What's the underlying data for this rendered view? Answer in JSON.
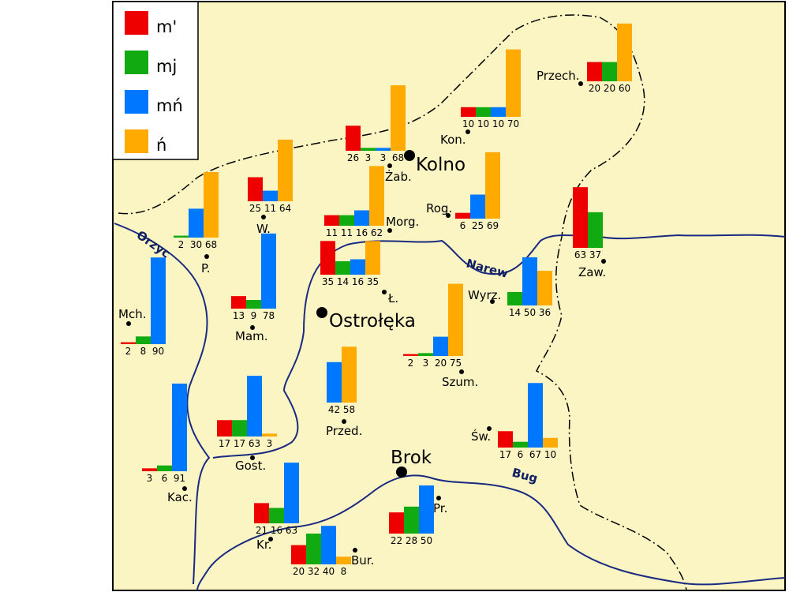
{
  "legend": [
    {
      "label": "m'",
      "color": "#ee0000"
    },
    {
      "label": "mj",
      "color": "#11aa11"
    },
    {
      "label": "mń",
      "color": "#0077ff"
    },
    {
      "label": "ń",
      "color": "#ffaa00"
    }
  ],
  "places": [
    {
      "label": "Przech.",
      "values": [
        20,
        20,
        null,
        60
      ]
    },
    {
      "label": "Kon.",
      "values": [
        10,
        10,
        10,
        70
      ]
    },
    {
      "label": "Żab.",
      "values": [
        26,
        3,
        3,
        68
      ]
    },
    {
      "label": "Rog.",
      "values": [
        6,
        null,
        25,
        69
      ]
    },
    {
      "label": "W.",
      "values": [
        25,
        null,
        11,
        64
      ]
    },
    {
      "label": "P.",
      "values": [
        null,
        2,
        30,
        68
      ]
    },
    {
      "label": "Morg.",
      "values": [
        11,
        11,
        16,
        62
      ]
    },
    {
      "label": "Ł.",
      "values": [
        35,
        14,
        16,
        35
      ]
    },
    {
      "label": "Zaw.",
      "values": [
        63,
        37,
        null,
        null
      ]
    },
    {
      "label": "Wyrz.",
      "values": [
        null,
        14,
        50,
        36
      ]
    },
    {
      "label": "Mch.",
      "values": [
        2,
        8,
        90,
        null
      ]
    },
    {
      "label": "Mam.",
      "values": [
        13,
        9,
        78,
        null
      ]
    },
    {
      "label": "Szum.",
      "values": [
        2,
        3,
        20,
        75
      ]
    },
    {
      "label": "Przed.",
      "values": [
        null,
        null,
        42,
        58
      ]
    },
    {
      "label": "Gost.",
      "values": [
        17,
        17,
        63,
        3
      ]
    },
    {
      "label": "Kac.",
      "values": [
        3,
        6,
        91,
        null
      ]
    },
    {
      "label": "Św.",
      "values": [
        17,
        6,
        67,
        10
      ]
    },
    {
      "label": "Pr.",
      "values": [
        22,
        28,
        50,
        null
      ]
    },
    {
      "label": "Kr.",
      "values": [
        21,
        16,
        63,
        null
      ]
    },
    {
      "label": "Bur.",
      "values": [
        20,
        32,
        40,
        8
      ]
    }
  ],
  "cities": [
    "Kolno",
    "Ostrołęka",
    "Brok"
  ],
  "rivers": [
    "Orzyc",
    "Narew",
    "Bug"
  ]
}
